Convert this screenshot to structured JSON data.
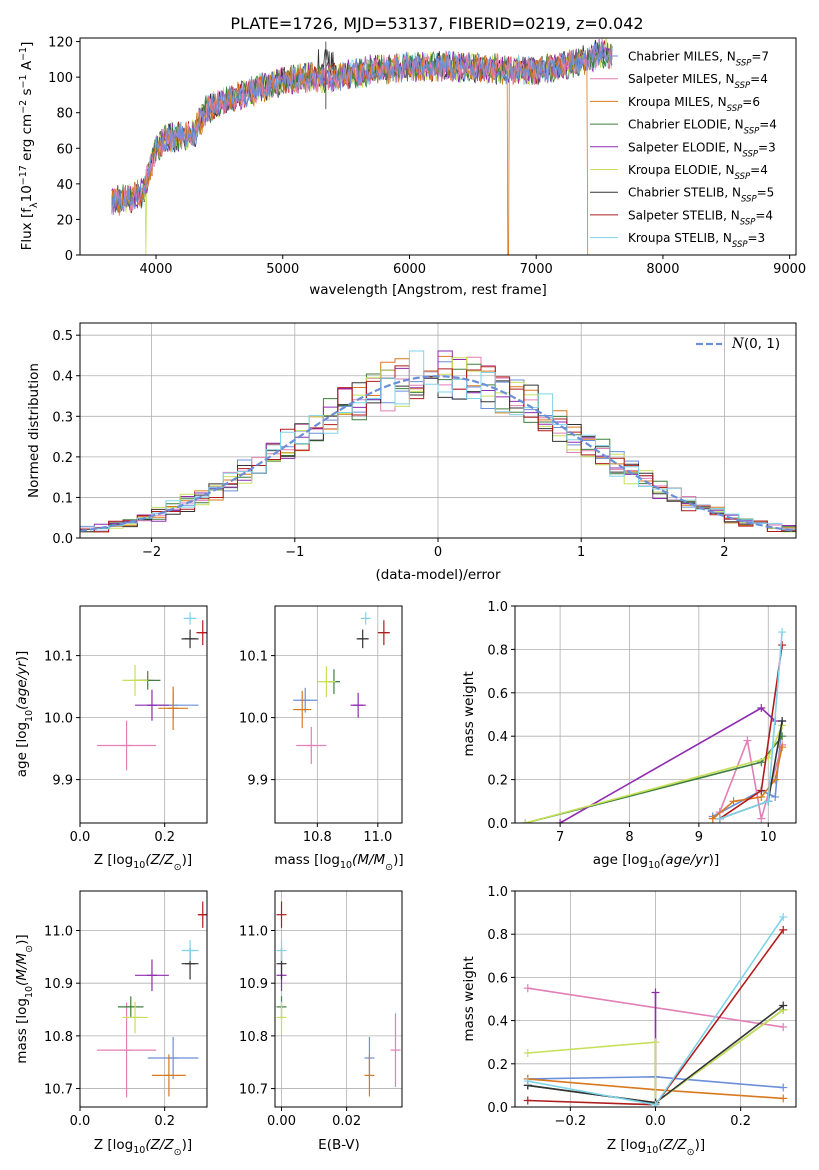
{
  "figure": {
    "title": "PLATE=1726, MJD=53137, FIBERID=0219, z=0.042"
  },
  "legend": [
    {
      "label": "Chabrier MILES, N",
      "sub": "SSP",
      "tail": "=7",
      "color": "#6b8fd8"
    },
    {
      "label": "Salpeter MILES, N",
      "sub": "SSP",
      "tail": "=4",
      "color": "#e27fb6"
    },
    {
      "label": "Kroupa MILES, N",
      "sub": "SSP",
      "tail": "=6",
      "color": "#d9791f"
    },
    {
      "label": "Chabrier ELODIE, N",
      "sub": "SSP",
      "tail": "=4",
      "color": "#3f7f3f"
    },
    {
      "label": "Salpeter ELODIE, N",
      "sub": "SSP",
      "tail": "=3",
      "color": "#8e2bb0"
    },
    {
      "label": "Kroupa ELODIE, N",
      "sub": "SSP",
      "tail": "=4",
      "color": "#c6e05a"
    },
    {
      "label": "Chabrier STELIB, N",
      "sub": "SSP",
      "tail": "=5",
      "color": "#333333"
    },
    {
      "label": "Salpeter STELIB, N",
      "sub": "SSP",
      "tail": "=4",
      "color": "#b01c1c"
    },
    {
      "label": "Kroupa STELIB, N",
      "sub": "SSP",
      "tail": "=3",
      "color": "#7fd3ea"
    }
  ],
  "chart_data": [
    {
      "panel": "spectrum",
      "type": "line",
      "xlabel": "wavelength [Angstrom, rest frame]",
      "ylabel": "Flux [fλ10⁻¹⁷ erg cm⁻² s⁻¹ A⁻¹]",
      "xlim": [
        3400,
        9050
      ],
      "ylim": [
        0,
        122
      ],
      "xticks": [
        4000,
        5000,
        6000,
        7000,
        8000,
        9000
      ],
      "yticks": [
        0,
        20,
        40,
        60,
        80,
        100,
        120
      ],
      "x_range": [
        3650,
        7600
      ],
      "envelope": [
        [
          3650,
          30
        ],
        [
          3800,
          32
        ],
        [
          3900,
          35
        ],
        [
          4000,
          60
        ],
        [
          4100,
          66
        ],
        [
          4300,
          68
        ],
        [
          4400,
          82
        ],
        [
          4600,
          88
        ],
        [
          4800,
          93
        ],
        [
          5000,
          98
        ],
        [
          5200,
          100
        ],
        [
          5400,
          100
        ],
        [
          5700,
          104
        ],
        [
          6000,
          106
        ],
        [
          6300,
          106
        ],
        [
          6600,
          105
        ],
        [
          6800,
          104
        ],
        [
          7000,
          104
        ],
        [
          7200,
          106
        ],
        [
          7400,
          110
        ],
        [
          7500,
          114
        ],
        [
          7600,
          112
        ]
      ],
      "drops": [
        {
          "series": 5,
          "x": 3920
        },
        {
          "series": 2,
          "x": 6780
        },
        {
          "series": 2,
          "x": 7410
        }
      ]
    },
    {
      "panel": "residuals",
      "type": "histogram",
      "xlabel": "(data-model)/error",
      "ylabel": "Normed distribution",
      "xlim": [
        -2.5,
        2.5
      ],
      "ylim": [
        0,
        0.53
      ],
      "xticks": [
        -2,
        -1,
        0,
        1,
        2
      ],
      "yticks": [
        0,
        0.1,
        0.2,
        0.3,
        0.4,
        0.5
      ],
      "bin_width": 0.1,
      "grid": true,
      "curve_label": "N(0, 1)",
      "curve_color": "#6b8fd8",
      "legend_loc": "upper right"
    },
    {
      "panel": "Z-age",
      "type": "errorbar",
      "xlabel": "Z [log10(Z/Z⊙)]",
      "ylabel": "age [log10(age/yr)]",
      "xlim": [
        0,
        0.3
      ],
      "ylim": [
        9.83,
        10.18
      ],
      "xticks": [
        0.0,
        0.2
      ],
      "yticks": [
        9.9,
        10.0,
        10.1
      ],
      "points": [
        [
          0.22,
          10.02,
          0.06,
          0.022
        ],
        [
          0.11,
          9.955,
          0.07,
          0.04
        ],
        [
          0.22,
          10.015,
          0.035,
          0.035
        ],
        [
          0.16,
          10.06,
          0.03,
          0.015
        ],
        [
          0.17,
          10.02,
          0.04,
          0.025
        ],
        [
          0.13,
          10.06,
          0.03,
          0.025
        ],
        [
          0.26,
          10.127,
          0.02,
          0.015
        ],
        [
          0.29,
          10.137,
          0.015,
          0.02
        ],
        [
          0.26,
          10.16,
          0.015,
          0.01
        ]
      ]
    },
    {
      "panel": "mass-age",
      "type": "errorbar",
      "xlabel": "mass [log10(M/M⊙)]",
      "ylabel": "",
      "xlim": [
        10.66,
        11.08
      ],
      "ylim": [
        9.83,
        10.18
      ],
      "xticks": [
        10.8,
        11.0
      ],
      "yticks": [
        9.9,
        10.0,
        10.1
      ],
      "points": [
        [
          10.76,
          10.028,
          0.04,
          0.02
        ],
        [
          10.78,
          9.955,
          0.05,
          0.03
        ],
        [
          10.75,
          10.013,
          0.03,
          0.03
        ],
        [
          10.855,
          10.058,
          0.02,
          0.02
        ],
        [
          10.935,
          10.02,
          0.025,
          0.02
        ],
        [
          10.83,
          10.058,
          0.03,
          0.025
        ],
        [
          10.95,
          10.127,
          0.02,
          0.015
        ],
        [
          11.02,
          10.137,
          0.02,
          0.02
        ],
        [
          10.96,
          10.16,
          0.01,
          0.01
        ]
      ]
    },
    {
      "panel": "age-weight",
      "type": "line",
      "xlabel": "age [log10(age/yr)]",
      "ylabel": "mass weight",
      "xlim": [
        6.35,
        10.4
      ],
      "ylim": [
        0,
        1.0
      ],
      "xticks": [
        7,
        8,
        9,
        10
      ],
      "yticks": [
        0.0,
        0.2,
        0.4,
        0.6,
        0.8,
        1.0
      ],
      "series": [
        {
          "x": [
            9.2,
            9.9,
            10.1,
            10.2
          ],
          "y": [
            0.03,
            0.15,
            0.12,
            0.47
          ]
        },
        {
          "x": [
            9.3,
            9.7,
            9.9,
            10.2
          ],
          "y": [
            0.05,
            0.38,
            0.02,
            0.36
          ]
        },
        {
          "x": [
            9.2,
            9.5,
            9.9,
            10.1,
            10.2
          ],
          "y": [
            0.02,
            0.1,
            0.12,
            0.2,
            0.35
          ]
        },
        {
          "x": [
            6.5,
            9.9,
            10.2
          ],
          "y": [
            0.0,
            0.28,
            0.4
          ]
        },
        {
          "x": [
            7.0,
            9.9,
            10.1
          ],
          "y": [
            0.0,
            0.53,
            0.47
          ]
        },
        {
          "x": [
            6.5,
            10.0,
            10.2
          ],
          "y": [
            0.0,
            0.3,
            0.45
          ]
        },
        {
          "x": [
            9.3,
            10.0,
            10.2
          ],
          "y": [
            0.02,
            0.1,
            0.47
          ]
        },
        {
          "x": [
            9.3,
            9.9,
            10.2
          ],
          "y": [
            0.02,
            0.15,
            0.82
          ]
        },
        {
          "x": [
            9.3,
            10.0,
            10.2
          ],
          "y": [
            0.02,
            0.1,
            0.88
          ]
        }
      ]
    },
    {
      "panel": "Z-mass",
      "type": "errorbar",
      "xlabel": "Z [log10(Z/Z⊙)]",
      "ylabel": "mass [log10(M/M⊙)]",
      "xlim": [
        0,
        0.3
      ],
      "ylim": [
        10.665,
        11.075
      ],
      "xticks": [
        0.0,
        0.2
      ],
      "yticks": [
        10.7,
        10.8,
        10.9,
        11.0
      ],
      "points": [
        [
          0.22,
          10.758,
          0.06,
          0.04
        ],
        [
          0.11,
          10.773,
          0.07,
          0.09
        ],
        [
          0.21,
          10.725,
          0.04,
          0.04
        ],
        [
          0.12,
          10.855,
          0.03,
          0.02
        ],
        [
          0.17,
          10.915,
          0.04,
          0.03
        ],
        [
          0.13,
          10.835,
          0.03,
          0.03
        ],
        [
          0.26,
          10.937,
          0.02,
          0.03
        ],
        [
          0.29,
          11.03,
          0.01,
          0.025
        ],
        [
          0.26,
          10.962,
          0.02,
          0.02
        ]
      ]
    },
    {
      "panel": "EBV-mass",
      "type": "errorbar",
      "xlabel": "E(B-V)",
      "ylabel": "",
      "xlim": [
        -0.002,
        0.037
      ],
      "ylim": [
        10.665,
        11.075
      ],
      "xticks": [
        0.0,
        0.02
      ],
      "yticks": [
        10.7,
        10.8,
        10.9,
        11.0
      ],
      "points": [
        [
          0.027,
          10.758,
          0.0,
          0.04
        ],
        [
          0.035,
          10.773,
          0.0,
          0.07
        ],
        [
          0.027,
          10.725,
          0.0,
          0.04
        ],
        [
          0.0,
          10.855,
          0.0,
          0.02
        ],
        [
          0.0,
          10.915,
          0.0,
          0.03
        ],
        [
          0.0,
          10.835,
          0.0,
          0.03
        ],
        [
          0.0,
          10.937,
          0.0,
          0.03
        ],
        [
          0.0,
          11.03,
          0.0,
          0.025
        ],
        [
          0.0,
          10.962,
          0.0,
          0.02
        ]
      ]
    },
    {
      "panel": "Z-weight",
      "type": "line",
      "xlabel": "Z [log10(Z/Z⊙)]",
      "ylabel": "mass weight",
      "xlim": [
        -0.33,
        0.33
      ],
      "ylim": [
        0,
        1.0
      ],
      "xticks": [
        -0.2,
        0.0,
        0.2
      ],
      "yticks": [
        0.0,
        0.2,
        0.4,
        0.6,
        0.8,
        1.0
      ],
      "series": [
        {
          "x": [
            -0.3,
            0.0,
            0.3
          ],
          "y": [
            0.13,
            0.14,
            0.09
          ]
        },
        {
          "x": [
            -0.3,
            0.3
          ],
          "y": [
            0.55,
            0.37
          ]
        },
        {
          "x": [
            -0.3,
            0.0,
            0.3
          ],
          "y": [
            0.13,
            0.08,
            0.04
          ]
        },
        {
          "x": [
            -0.3,
            0.0,
            0.3
          ],
          "y": [
            0.1,
            0.02,
            0.45
          ]
        },
        {
          "x": [
            0.0,
            0.0
          ],
          "y": [
            0.01,
            0.53
          ]
        },
        {
          "x": [
            -0.3,
            0.0,
            0.0,
            0.3
          ],
          "y": [
            0.25,
            0.3,
            0.02,
            0.45
          ]
        },
        {
          "x": [
            -0.3,
            0.0,
            0.3
          ],
          "y": [
            0.1,
            0.02,
            0.47
          ]
        },
        {
          "x": [
            -0.3,
            0.0,
            0.3
          ],
          "y": [
            0.03,
            0.01,
            0.82
          ]
        },
        {
          "x": [
            -0.3,
            0.0,
            0.3
          ],
          "y": [
            0.12,
            0.01,
            0.88
          ]
        }
      ]
    }
  ],
  "math": {
    "age_unit": "age/yr",
    "z_unit": "Z/Z",
    "m_unit": "M/M",
    "log": "log",
    "ten": "10",
    "sun": "⊙"
  }
}
